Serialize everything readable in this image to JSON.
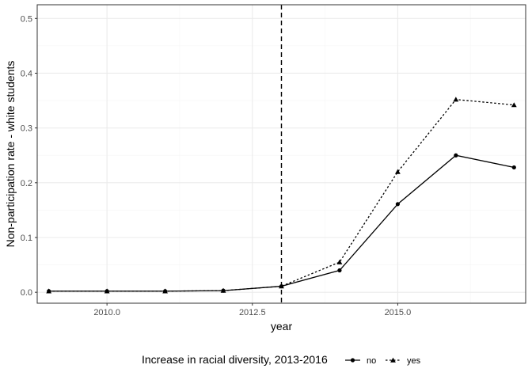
{
  "chart_data": {
    "type": "line",
    "xlabel": "year",
    "ylabel": "Non-participation rate - white students",
    "xlim": [
      2008.8,
      2017.2
    ],
    "ylim": [
      -0.02,
      0.525
    ],
    "x_ticks": [
      2010.0,
      2012.5,
      2015.0
    ],
    "x_tick_labels": [
      "2010.0",
      "2012.5",
      "2015.0"
    ],
    "y_ticks": [
      0.0,
      0.1,
      0.2,
      0.3,
      0.4,
      0.5
    ],
    "y_tick_labels": [
      "0.0",
      "0.1",
      "0.2",
      "0.3",
      "0.4",
      "0.5"
    ],
    "vline_x": 2013,
    "grid": true,
    "legend": {
      "title": "Increase in racial diversity, 2013-2016",
      "position": "bottom"
    },
    "x": [
      2009,
      2010,
      2011,
      2012,
      2013,
      2014,
      2015,
      2016,
      2017
    ],
    "series": [
      {
        "name": "no",
        "marker": "circle",
        "line_style": "solid",
        "values": [
          0.002,
          0.002,
          0.002,
          0.003,
          0.011,
          0.04,
          0.161,
          0.25,
          0.228
        ]
      },
      {
        "name": "yes",
        "marker": "triangle",
        "line_style": "dotted",
        "values": [
          0.002,
          0.002,
          0.002,
          0.003,
          0.011,
          0.055,
          0.22,
          0.352,
          0.342
        ]
      }
    ],
    "colors": {
      "series": "#000000",
      "grid_major": "#ebebeb",
      "grid_minor": "#f5f5f5",
      "panel_border": "#333333",
      "tick_text": "#4d4d4d"
    }
  }
}
